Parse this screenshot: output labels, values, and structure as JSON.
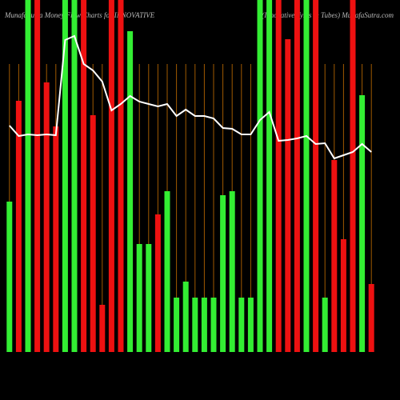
{
  "chart_data": {
    "type": "bar",
    "title": "MunafaSutra  Money Flow  Charts for INNOVATIVE",
    "subtitle": "(Innovative Tyres & Tubes) MunafaSutra.com",
    "series": [
      {
        "name": "Money Flow",
        "colors": [
          "#33ee33",
          "#ee1111",
          "#33ee33",
          "#ee1111",
          "#ee1111",
          "#ee1111",
          "#33ee33",
          "#33ee33",
          "#ee1111",
          "#ee1111",
          "#ee1111",
          "#ee1111",
          "#ee1111",
          "#33ee33",
          "#33ee33",
          "#33ee33",
          "#ee1111",
          "#33ee33",
          "#33ee33",
          "#33ee33",
          "#33ee33",
          "#33ee33",
          "#33ee33",
          "#33ee33",
          "#33ee33",
          "#33ee33",
          "#33ee33",
          "#33ee33",
          "#33ee33",
          "#ee1111",
          "#ee1111",
          "#ee1111",
          "#33ee33",
          "#ee1111",
          "#33ee33",
          "#ee1111",
          "#ee1111",
          "#ee1111",
          "#33ee33",
          "#ee1111"
        ],
        "values": [
          188,
          314,
          440,
          440,
          337,
          282,
          440,
          440,
          440,
          296,
          59,
          440,
          440,
          401,
          135,
          135,
          172,
          201,
          68,
          88,
          68,
          68,
          68,
          196,
          201,
          68,
          68,
          440,
          440,
          440,
          391,
          440,
          440,
          440,
          68,
          240,
          141,
          440,
          321,
          85
        ]
      },
      {
        "name": "Price",
        "color": "#ffffff",
        "values": [
          283,
          270,
          272,
          271,
          272,
          271,
          390,
          395,
          360,
          352,
          338,
          302,
          310,
          320,
          313,
          310,
          307,
          310,
          295,
          303,
          295,
          295,
          292,
          280,
          279,
          272,
          272,
          290,
          300,
          264,
          265,
          267,
          270,
          260,
          261,
          242,
          246,
          250,
          260,
          250
        ]
      }
    ],
    "ylim": [
      0,
      440
    ]
  }
}
